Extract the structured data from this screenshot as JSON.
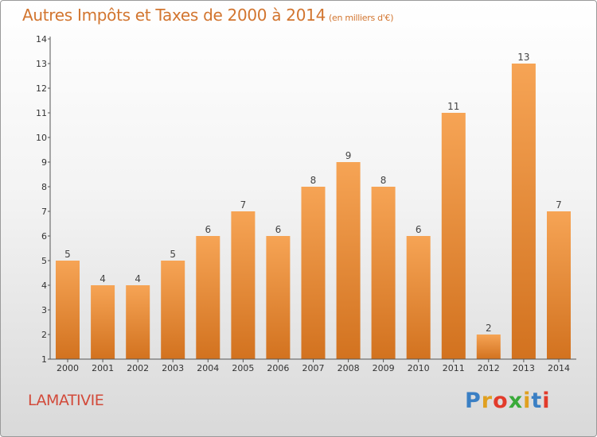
{
  "header": {
    "title": "Autres Impôts et Taxes de 2000 à 2014",
    "unit": "(en milliers d'€)"
  },
  "footer": {
    "commune": "LAMATIVIE",
    "brand_letters": [
      "P",
      "r",
      "o",
      "x",
      "i",
      "t",
      "i"
    ],
    "brand_colors": [
      "#3a7fc4",
      "#e0a020",
      "#e23b2b",
      "#3aaa3a",
      "#e0a020",
      "#3a7fc4",
      "#e23b2b"
    ]
  },
  "colors": {
    "bar_top": "#f6a455",
    "bar_bottom": "#d2721f",
    "title": "#d2752f",
    "axis": "#555555"
  },
  "chart_data": {
    "type": "bar",
    "categories": [
      "2000",
      "2001",
      "2002",
      "2003",
      "2004",
      "2005",
      "2006",
      "2007",
      "2008",
      "2009",
      "2010",
      "2011",
      "2012",
      "2013",
      "2014"
    ],
    "values": [
      5,
      4,
      4,
      5,
      6,
      7,
      6,
      8,
      9,
      8,
      6,
      11,
      2,
      13,
      7
    ],
    "title": "Autres Impôts et Taxes de 2000 à 2014",
    "ylim": [
      1,
      14
    ],
    "yticks": [
      1,
      2,
      3,
      4,
      5,
      6,
      7,
      8,
      9,
      10,
      11,
      12,
      13,
      14
    ],
    "grid": false,
    "data_labels": true
  }
}
